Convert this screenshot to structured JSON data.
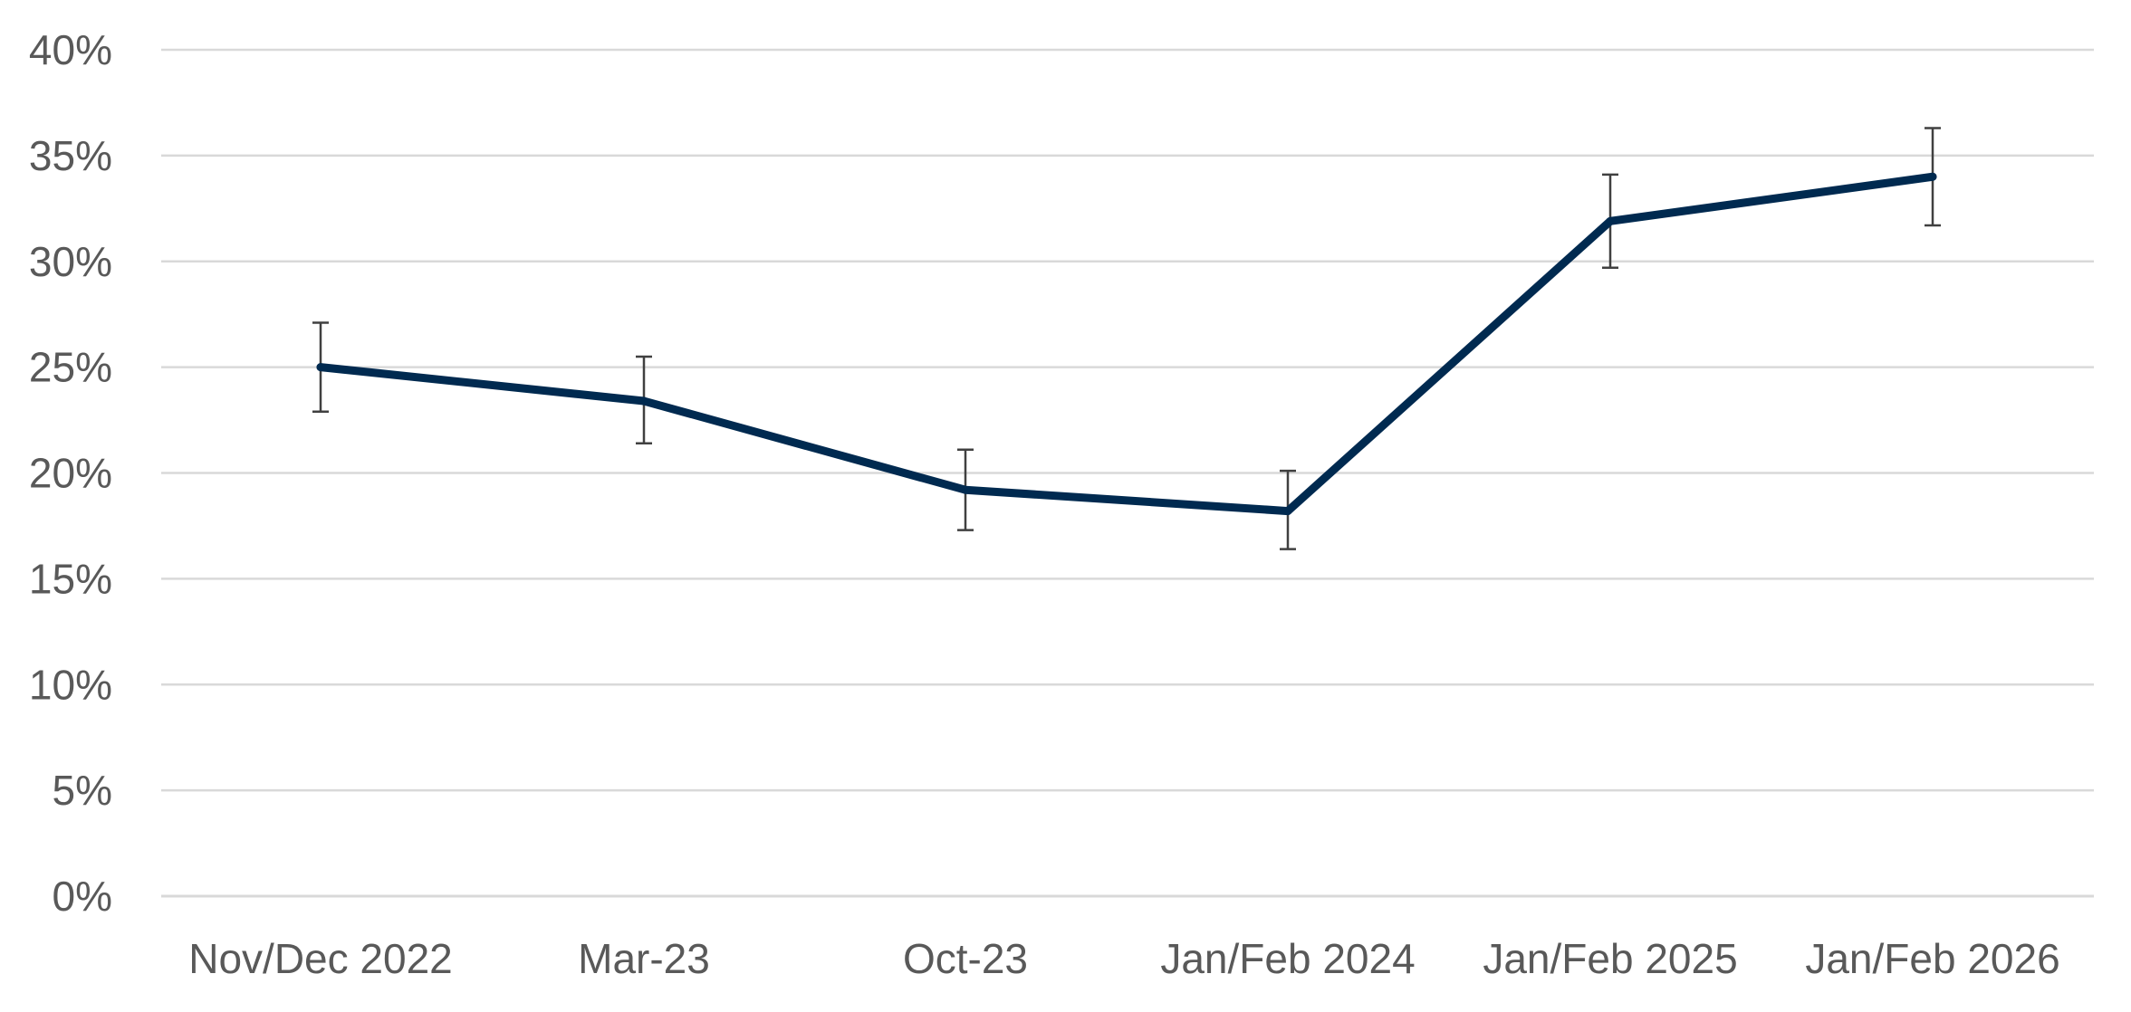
{
  "chart_data": {
    "type": "line",
    "title": "",
    "xlabel": "",
    "ylabel": "",
    "ylim": [
      0,
      40
    ],
    "yticks": [
      "0%",
      "5%",
      "10%",
      "15%",
      "20%",
      "25%",
      "30%",
      "35%",
      "40%"
    ],
    "ytick_values": [
      0,
      5,
      10,
      15,
      20,
      25,
      30,
      35,
      40
    ],
    "categories": [
      "Nov/Dec 2022",
      "Mar-23",
      "Oct-23",
      "Jan/Feb 2024",
      "Jan/Feb 2025",
      "Jan/Feb 2026"
    ],
    "grid": true,
    "legend": "none",
    "series": [
      {
        "values": [
          25.0,
          23.4,
          19.2,
          18.2,
          31.9,
          34.0
        ],
        "error_low": [
          22.9,
          21.4,
          17.3,
          16.4,
          29.7,
          31.7
        ],
        "error_high": [
          27.1,
          25.5,
          21.1,
          20.1,
          34.1,
          36.3
        ],
        "color": "#002a50"
      }
    ]
  }
}
